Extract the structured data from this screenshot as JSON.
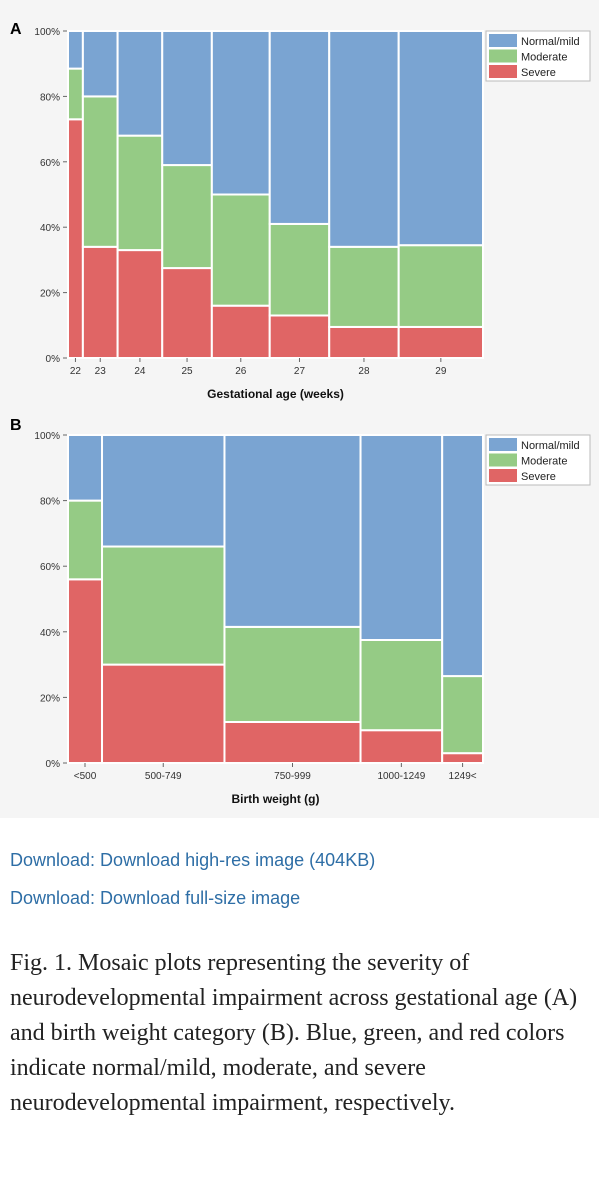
{
  "colors": {
    "normal_mild": "#7aa4d2",
    "moderate": "#95cb85",
    "severe": "#e06565"
  },
  "chart_data": [
    {
      "panel": "A",
      "type": "mosaic",
      "xlabel": "Gestational age (weeks)",
      "categories": [
        "22",
        "23",
        "24",
        "25",
        "26",
        "27",
        "28",
        "29"
      ],
      "relative_widths": [
        4.5,
        10.5,
        13.5,
        15,
        17.5,
        18,
        21,
        25.5
      ],
      "ylim": [
        0,
        100
      ],
      "y_ticks": [
        "0%",
        "20%",
        "40%",
        "60%",
        "80%",
        "100%"
      ],
      "legend": [
        "Normal/mild",
        "Moderate",
        "Severe"
      ],
      "legend_position": "top-right",
      "series": [
        {
          "name": "Severe",
          "color_key": "severe",
          "values": [
            73,
            34,
            33,
            27.5,
            16,
            13,
            9.5,
            9.5
          ]
        },
        {
          "name": "Moderate",
          "color_key": "moderate",
          "values": [
            15.5,
            46,
            35,
            31.5,
            34,
            28,
            24.5,
            25
          ]
        },
        {
          "name": "Normal/mild",
          "color_key": "normal_mild",
          "values": [
            11.5,
            20,
            32,
            41,
            50,
            59,
            66,
            65.5
          ]
        }
      ]
    },
    {
      "panel": "B",
      "type": "mosaic",
      "xlabel": "Birth weight (g)",
      "categories": [
        "<500",
        "500-749",
        "750-999",
        "1000-1249",
        "1249<"
      ],
      "relative_widths": [
        10,
        36,
        40,
        24,
        12
      ],
      "ylim": [
        0,
        100
      ],
      "y_ticks": [
        "0%",
        "20%",
        "40%",
        "60%",
        "80%",
        "100%"
      ],
      "legend": [
        "Normal/mild",
        "Moderate",
        "Severe"
      ],
      "legend_position": "top-right",
      "series": [
        {
          "name": "Severe",
          "color_key": "severe",
          "values": [
            56,
            30,
            12.5,
            10,
            3
          ]
        },
        {
          "name": "Moderate",
          "color_key": "moderate",
          "values": [
            24,
            36,
            29,
            27.5,
            23.5
          ]
        },
        {
          "name": "Normal/mild",
          "color_key": "normal_mild",
          "values": [
            20,
            34,
            58.5,
            62.5,
            73.5
          ]
        }
      ]
    }
  ],
  "links": {
    "high_res": "Download: Download high-res image (404KB)",
    "full_size": "Download: Download full-size image"
  },
  "caption": "Fig. 1. Mosaic plots representing the severity of neurodevelopmental impairment across gestational age (A) and birth weight category (B). Blue, green, and red colors indicate normal/mild, moderate, and severe neurodevelopmental impairment, respectively."
}
